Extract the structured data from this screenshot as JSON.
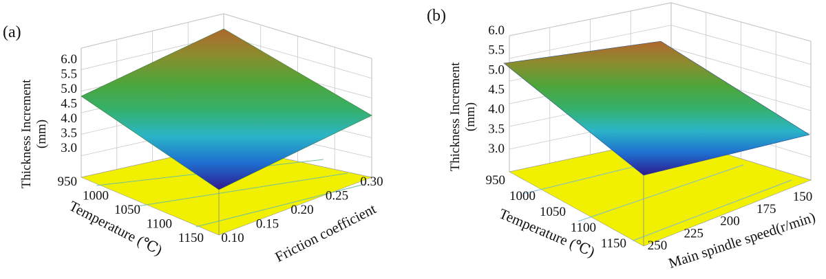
{
  "chart_data": [
    {
      "type": "surface",
      "panel_label": "(a)",
      "zlabel_line1": "Thickness Increment",
      "zlabel_line2": "(mm)",
      "z_ticks": [
        "3.0",
        "3.5",
        "4.0",
        "4.5",
        "5.0",
        "5.5",
        "6.0"
      ],
      "zlim": [
        3.0,
        6.0
      ],
      "x_axis": {
        "label": "Temperature (℃)",
        "ticks": [
          "950",
          "1000",
          "1050",
          "1100",
          "1150"
        ],
        "range": [
          950,
          1150
        ]
      },
      "y_axis": {
        "label": "Friction coefficient",
        "ticks": [
          "0.10",
          "0.15",
          "0.20",
          "0.25",
          "0.30"
        ],
        "range": [
          0.1,
          0.3
        ]
      },
      "surface_corners": [
        {
          "temperature": 950,
          "friction": 0.1,
          "thickness_increment": 4.85
        },
        {
          "temperature": 950,
          "friction": 0.3,
          "thickness_increment": 6.15
        },
        {
          "temperature": 1150,
          "friction": 0.1,
          "thickness_increment": 2.75
        },
        {
          "temperature": 1150,
          "friction": 0.3,
          "thickness_increment": 4.05
        }
      ],
      "floor_color": "#f0f000",
      "colormap": [
        "#2f1a8f",
        "#1e6fd0",
        "#2bb5c7",
        "#35b06a",
        "#4ea53a",
        "#8a8d2e",
        "#b0672d"
      ]
    },
    {
      "type": "surface",
      "panel_label": "(b)",
      "zlabel_line1": "Thickness Increment",
      "zlabel_line2": "(mm)",
      "z_ticks": [
        "3.0",
        "3.5",
        "4.0",
        "4.5",
        "5.0",
        "5.5",
        "6.0"
      ],
      "zlim": [
        3.0,
        6.0
      ],
      "x_axis": {
        "label": "Temperature (℃)",
        "ticks": [
          "950",
          "1000",
          "1050",
          "1100",
          "1150"
        ],
        "range": [
          950,
          1150
        ]
      },
      "y_axis": {
        "label": "Main spindle speed(r/min)",
        "ticks": [
          "250",
          "225",
          "200",
          "175",
          "150"
        ],
        "range": [
          150,
          250
        ]
      },
      "surface_corners": [
        {
          "temperature": 950,
          "speed": 250,
          "thickness_increment": 5.2
        },
        {
          "temperature": 950,
          "speed": 150,
          "thickness_increment": 5.55
        },
        {
          "temperature": 1150,
          "speed": 250,
          "thickness_increment": 3.05
        },
        {
          "temperature": 1150,
          "speed": 150,
          "thickness_increment": 3.4
        }
      ],
      "floor_color": "#f0f000",
      "colormap": [
        "#2f1a8f",
        "#1e6fd0",
        "#2bb5c7",
        "#35b06a",
        "#4ea53a",
        "#8a8d2e",
        "#b0672d"
      ]
    }
  ]
}
